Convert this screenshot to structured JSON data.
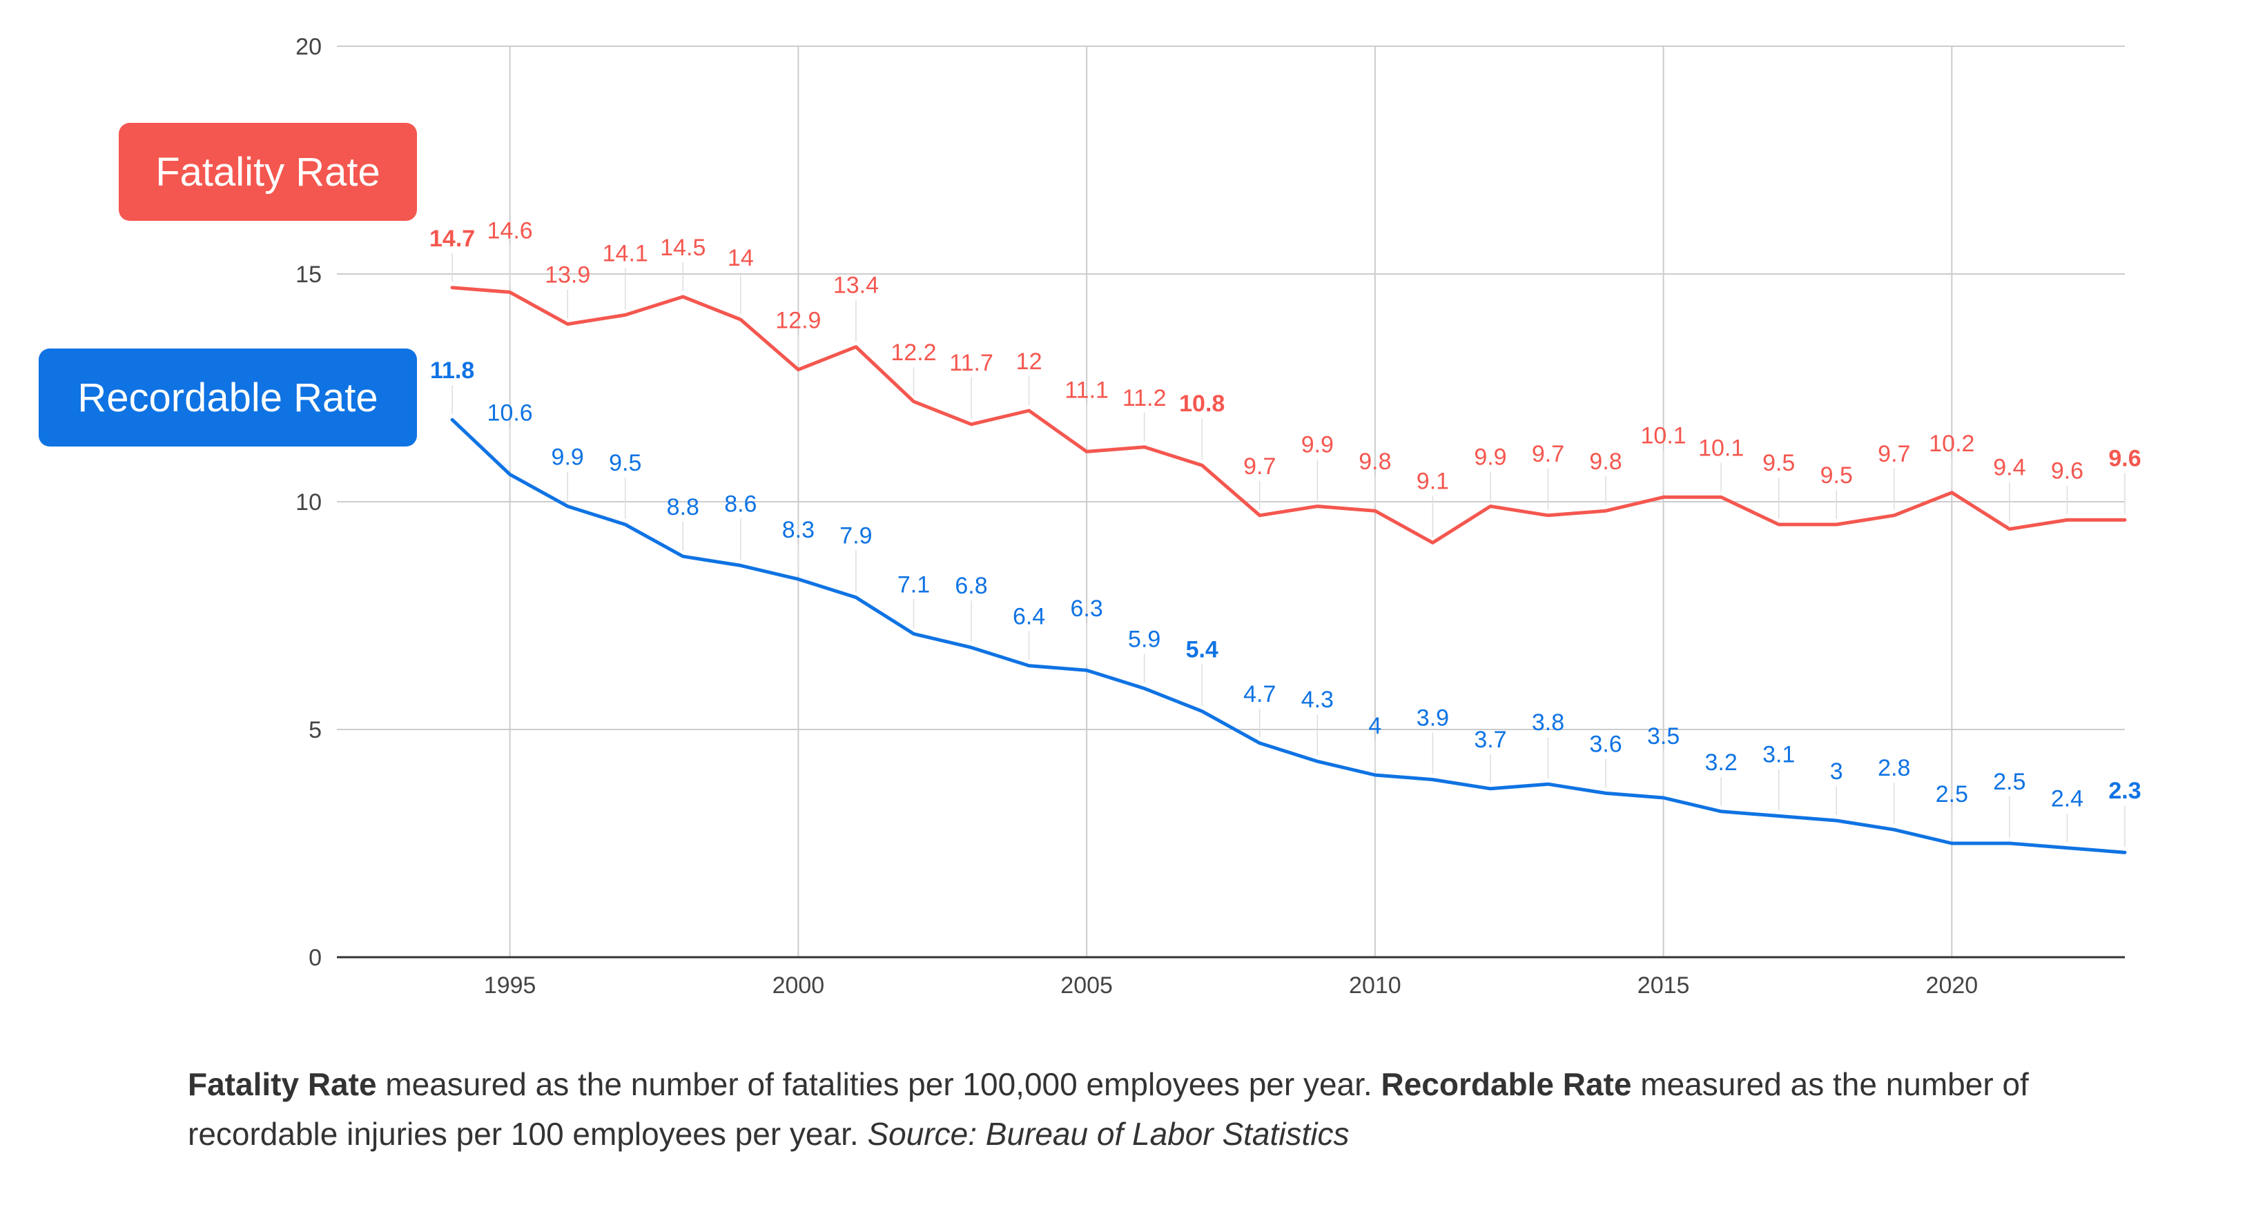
{
  "chart_data": {
    "type": "line",
    "x": [
      1994,
      1995,
      1996,
      1997,
      1998,
      1999,
      2000,
      2001,
      2002,
      2003,
      2004,
      2005,
      2006,
      2007,
      2008,
      2009,
      2010,
      2011,
      2012,
      2013,
      2014,
      2015,
      2016,
      2017,
      2018,
      2019,
      2020,
      2021,
      2022,
      2023
    ],
    "xlim": [
      1992,
      2023
    ],
    "ylim": [
      0,
      20
    ],
    "x_ticks": [
      1995,
      2000,
      2005,
      2010,
      2015,
      2020
    ],
    "x_tick_labels": [
      "1995",
      "2000",
      "2005",
      "2010",
      "2015",
      "2020"
    ],
    "y_ticks": [
      0,
      5,
      10,
      15,
      20
    ],
    "y_tick_labels": [
      "0",
      "5",
      "10",
      "15",
      "20"
    ],
    "grid": true,
    "series": [
      {
        "name": "Fatality Rate",
        "color": "#F4574F",
        "values": [
          14.7,
          14.6,
          13.9,
          14.1,
          14.5,
          14,
          12.9,
          13.4,
          12.2,
          11.7,
          12,
          11.1,
          11.2,
          10.8,
          9.7,
          9.9,
          9.8,
          9.1,
          9.9,
          9.7,
          9.8,
          10.1,
          10.1,
          9.5,
          9.5,
          9.7,
          10.2,
          9.4,
          9.6,
          9.6
        ],
        "labels": [
          "14.7",
          "14.6",
          "13.9",
          "14.1",
          "14.5",
          "14",
          "12.9",
          "13.4",
          "12.2",
          "11.7",
          "12",
          "11.1",
          "11.2",
          "10.8",
          "9.7",
          "9.9",
          "9.8",
          "9.1",
          "9.9",
          "9.7",
          "9.8",
          "10.1",
          "10.1",
          "9.5",
          "9.5",
          "9.7",
          "10.2",
          "9.4",
          "9.6",
          "9.6"
        ],
        "bold_indices": [
          0,
          13,
          29
        ]
      },
      {
        "name": "Recordable Rate",
        "color": "#0F73E3",
        "values": [
          11.8,
          10.6,
          9.9,
          9.5,
          8.8,
          8.6,
          8.3,
          7.9,
          7.1,
          6.8,
          6.4,
          6.3,
          5.9,
          5.4,
          4.7,
          4.3,
          4,
          3.9,
          3.7,
          3.8,
          3.6,
          3.5,
          3.2,
          3.1,
          3,
          2.8,
          2.5,
          2.5,
          2.4,
          2.3
        ],
        "labels": [
          "11.8",
          "10.6",
          "9.9",
          "9.5",
          "8.8",
          "8.6",
          "8.3",
          "7.9",
          "7.1",
          "6.8",
          "6.4",
          "6.3",
          "5.9",
          "5.4",
          "4.7",
          "4.3",
          "4",
          "3.9",
          "3.7",
          "3.8",
          "3.6",
          "3.5",
          "3.2",
          "3.1",
          "3",
          "2.8",
          "2.5",
          "2.5",
          "2.4",
          "2.3"
        ],
        "bold_indices": [
          0,
          13,
          29
        ]
      }
    ],
    "legend": [
      {
        "label": "Fatality Rate",
        "color": "#F4574F"
      },
      {
        "label": "Recordable Rate",
        "color": "#0F73E3"
      }
    ],
    "caption": {
      "fatality_term": "Fatality Rate",
      "fatality_text": " measured as the number of fatalities per 100,000 employees per year. ",
      "recordable_term": "Recordable Rate",
      "recordable_text": " measured as the number of recordable injuries per 100 employees per year. ",
      "source": "Source: Bureau of Labor Statistics"
    }
  }
}
